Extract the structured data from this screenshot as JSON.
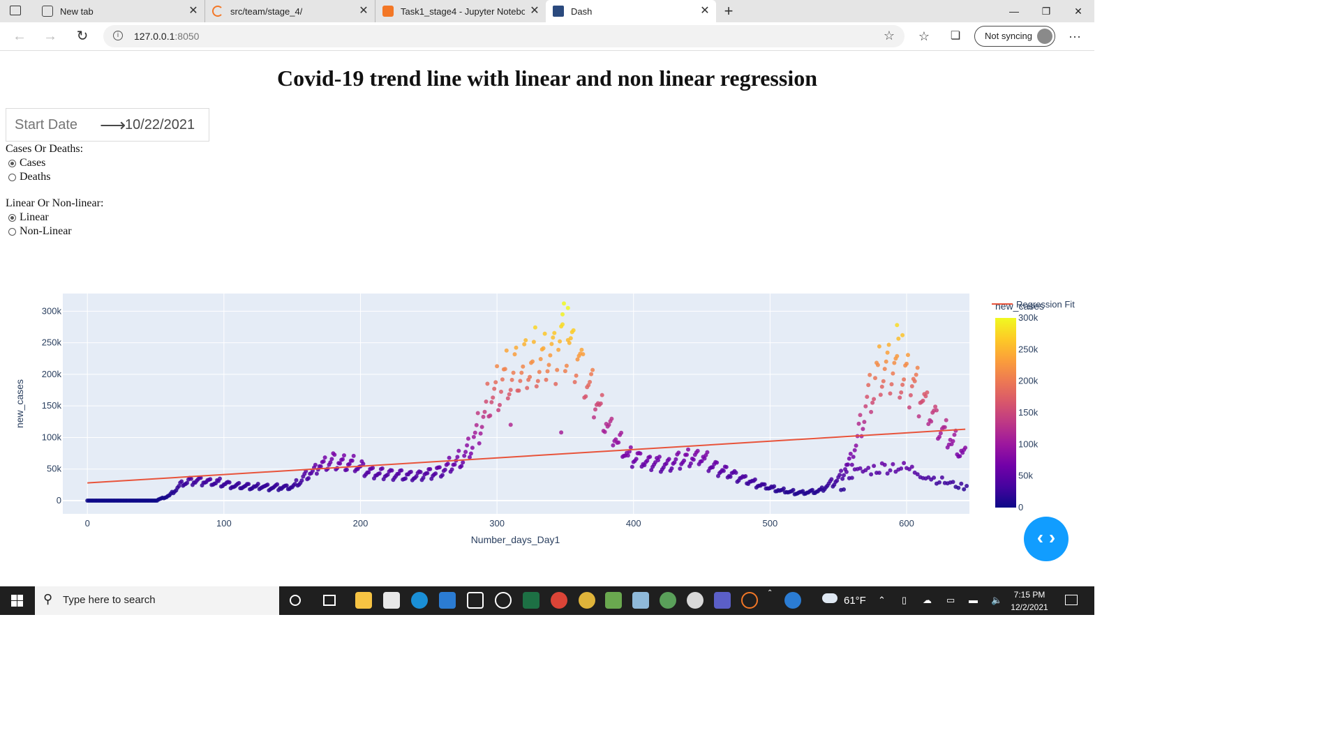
{
  "browser": {
    "tabs": [
      {
        "label": "New tab",
        "icon": "new-tab-icon"
      },
      {
        "label": "src/team/stage_4/",
        "icon": "jupyter-loading-icon"
      },
      {
        "label": "Task1_stage4 - Jupyter Notebook",
        "icon": "jupyter-icon"
      },
      {
        "label": "Dash",
        "icon": "dash-icon",
        "active": true
      }
    ],
    "url_host": "127.0.0.1",
    "url_port": ":8050",
    "sync_label": "Not syncing"
  },
  "page": {
    "title": "Covid-19 trend line with linear and non linear regression",
    "date_picker": {
      "start_placeholder": "Start Date",
      "end_value": "10/22/2021"
    },
    "cases_or_deaths": {
      "label": "Cases Or Deaths:",
      "options": [
        "Cases",
        "Deaths"
      ],
      "selected": "Cases"
    },
    "linear_or_nonlinear": {
      "label": "Linear Or Non-linear:",
      "options": [
        "Linear",
        "Non-Linear"
      ],
      "selected": "Linear"
    }
  },
  "chart_data": {
    "type": "scatter",
    "xlabel": "Number_days_Day1",
    "ylabel": "new_cases",
    "xlim": [
      -18,
      646
    ],
    "ylim": [
      -21000,
      328000
    ],
    "xticks": [
      0,
      100,
      200,
      300,
      400,
      500,
      600
    ],
    "xtick_labels": [
      "0",
      "100",
      "200",
      "300",
      "400",
      "500",
      "600"
    ],
    "yticks": [
      0,
      50000,
      100000,
      150000,
      200000,
      250000,
      300000
    ],
    "ytick_labels": [
      "0",
      "50k",
      "100k",
      "150k",
      "200k",
      "250k",
      "300k"
    ],
    "grid": true,
    "colorbar": {
      "title": "new_cases",
      "range": [
        0,
        300000
      ],
      "ticks": [
        0,
        50000,
        100000,
        150000,
        200000,
        250000,
        300000
      ],
      "tick_labels": [
        "0",
        "50k",
        "100k",
        "150k",
        "200k",
        "250k",
        "300k"
      ],
      "colors": [
        "#0d0887",
        "#46039f",
        "#7201a8",
        "#9c179e",
        "#bd3786",
        "#d8576b",
        "#ed7953",
        "#fb9f3a",
        "#fdca26",
        "#f0f921"
      ]
    },
    "legend": [
      {
        "name": "Regression Fit",
        "color": "#e8533a"
      }
    ],
    "series": [
      {
        "name": "new_cases",
        "mode": "markers",
        "anchors": [
          [
            0,
            0
          ],
          [
            50,
            200
          ],
          [
            60,
            8000
          ],
          [
            70,
            30000
          ],
          [
            80,
            33000
          ],
          [
            95,
            30000
          ],
          [
            110,
            24000
          ],
          [
            130,
            22000
          ],
          [
            150,
            22000
          ],
          [
            160,
            40000
          ],
          [
            170,
            58000
          ],
          [
            180,
            67000
          ],
          [
            190,
            62000
          ],
          [
            200,
            56000
          ],
          [
            210,
            45000
          ],
          [
            225,
            42000
          ],
          [
            240,
            40000
          ],
          [
            260,
            50000
          ],
          [
            275,
            70000
          ],
          [
            285,
            110000
          ],
          [
            295,
            170000
          ],
          [
            310,
            205000
          ],
          [
            325,
            225000
          ],
          [
            340,
            240000
          ],
          [
            352,
            270000
          ],
          [
            362,
            220000
          ],
          [
            372,
            170000
          ],
          [
            385,
            110000
          ],
          [
            395,
            75000
          ],
          [
            410,
            65000
          ],
          [
            425,
            60000
          ],
          [
            440,
            70000
          ],
          [
            450,
            72000
          ],
          [
            460,
            55000
          ],
          [
            475,
            40000
          ],
          [
            490,
            28000
          ],
          [
            505,
            18000
          ],
          [
            520,
            13000
          ],
          [
            535,
            15000
          ],
          [
            550,
            35000
          ],
          [
            560,
            70000
          ],
          [
            570,
            150000
          ],
          [
            580,
            215000
          ],
          [
            590,
            230000
          ],
          [
            600,
            205000
          ],
          [
            612,
            170000
          ],
          [
            625,
            115000
          ],
          [
            635,
            95000
          ],
          [
            643,
            70000
          ]
        ],
        "lower_branch": [
          [
            555,
            40000
          ],
          [
            575,
            50000
          ],
          [
            590,
            55000
          ],
          [
            605,
            48000
          ],
          [
            620,
            35000
          ],
          [
            635,
            25000
          ],
          [
            645,
            20000
          ]
        ],
        "outliers": [
          [
            352,
            305000
          ],
          [
            348,
            295000
          ],
          [
            593,
            278000
          ],
          [
            597,
            262000
          ],
          [
            347,
            108000
          ],
          [
            310,
            120000
          ]
        ]
      },
      {
        "name": "Regression Fit",
        "mode": "lines",
        "x": [
          0,
          643
        ],
        "y": [
          28000,
          113000
        ]
      }
    ]
  },
  "taskbar": {
    "search_placeholder": "Type here to search",
    "weather": "61°F",
    "time": "7:15 PM",
    "date": "12/2/2021"
  }
}
